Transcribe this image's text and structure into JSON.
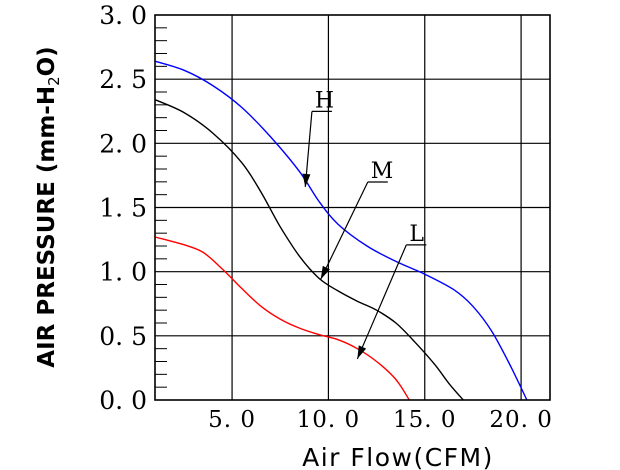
{
  "chart_data": {
    "type": "line",
    "xlabel": "Air Flow(CFM)",
    "ylabel": "AIR PRESSURE (mm-H2O)",
    "ylabel_parts": {
      "main": "AIR PRESSURE (mm-H",
      "sub": "2",
      "end": "O)"
    },
    "xlim": [
      1.0,
      21.5
    ],
    "ylim": [
      0.0,
      3.0
    ],
    "x_ticks": [
      5.0,
      10.0,
      15.0,
      20.0
    ],
    "x_tick_labels": [
      "5. 0",
      "10. 0",
      "15. 0",
      "20. 0"
    ],
    "y_ticks": [
      0.0,
      0.5,
      1.0,
      1.5,
      2.0,
      2.5,
      3.0
    ],
    "y_tick_labels": [
      "0. 0",
      "0. 5",
      "1. 0",
      "1. 5",
      "2. 0",
      "2. 5",
      "3. 0"
    ],
    "grid": true,
    "series": [
      {
        "name": "H",
        "color": "#0000ff",
        "x": [
          1.0,
          2.5,
          4.0,
          5.5,
          7.0,
          8.5,
          9.5,
          10.5,
          12.0,
          13.5,
          15.0,
          16.5,
          17.5,
          18.5,
          19.5,
          20.3
        ],
        "y": [
          2.64,
          2.57,
          2.45,
          2.28,
          2.05,
          1.78,
          1.55,
          1.37,
          1.2,
          1.08,
          0.98,
          0.86,
          0.73,
          0.53,
          0.25,
          0.0
        ]
      },
      {
        "name": "M",
        "color": "#000000",
        "x": [
          1.0,
          2.5,
          4.0,
          5.5,
          6.5,
          7.5,
          8.5,
          9.5,
          10.5,
          11.5,
          12.5,
          13.5,
          14.5,
          15.5,
          16.3,
          17.0
        ],
        "y": [
          2.34,
          2.24,
          2.08,
          1.85,
          1.62,
          1.35,
          1.12,
          0.95,
          0.85,
          0.77,
          0.7,
          0.6,
          0.45,
          0.28,
          0.12,
          0.0
        ]
      },
      {
        "name": "L",
        "color": "#ff0000",
        "x": [
          1.0,
          2.5,
          3.5,
          4.5,
          5.5,
          6.5,
          7.5,
          8.5,
          9.5,
          10.5,
          11.5,
          12.5,
          13.5,
          14.2
        ],
        "y": [
          1.27,
          1.21,
          1.15,
          1.02,
          0.87,
          0.73,
          0.63,
          0.56,
          0.51,
          0.47,
          0.4,
          0.3,
          0.16,
          0.0
        ]
      }
    ],
    "annotations": [
      {
        "label": "H",
        "series": "H",
        "text_x": 9.3,
        "text_y": 2.28,
        "arrow_to": [
          8.8,
          1.66
        ]
      },
      {
        "label": "M",
        "series": "M",
        "text_x": 12.2,
        "text_y": 1.73,
        "arrow_to": [
          9.6,
          0.94
        ]
      },
      {
        "label": "L",
        "series": "L",
        "text_x": 14.2,
        "text_y": 1.24,
        "arrow_to": [
          11.5,
          0.32
        ]
      }
    ]
  }
}
